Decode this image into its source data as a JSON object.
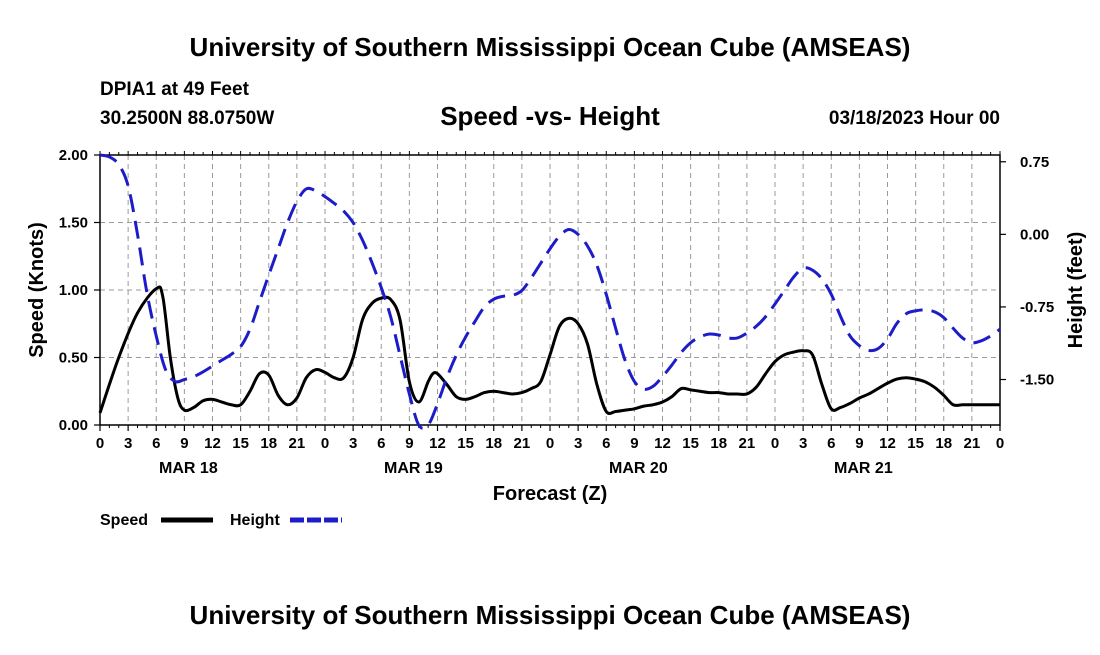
{
  "header": {
    "title": "University of Southern Mississippi Ocean Cube (AMSEAS)",
    "station": "DPIA1 at 49 Feet",
    "coords": "30.2500N  88.0750W",
    "plot_title": "Speed -vs- Height",
    "datetime": "03/18/2023 Hour 00",
    "footer_title": "University of Southern Mississippi Ocean Cube (AMSEAS)"
  },
  "legend": {
    "speed": "Speed",
    "height": "Height"
  },
  "colors": {
    "speed": "#000000",
    "height": "#1c1cc8",
    "grid": "#9a9a9a"
  },
  "chart_data": {
    "type": "line",
    "title": "Speed -vs- Height",
    "xlabel": "Forecast (Z)",
    "ylabel": "Speed (Knots)",
    "y2label": "Height (feet)",
    "xlim": [
      0,
      96
    ],
    "ylim": [
      0,
      2.0
    ],
    "y2lim": [
      -1.97,
      0.82
    ],
    "x_ticks": [
      0,
      3,
      6,
      9,
      12,
      15,
      18,
      21,
      24,
      27,
      30,
      33,
      36,
      39,
      42,
      45,
      48,
      51,
      54,
      57,
      60,
      63,
      66,
      69,
      72,
      75,
      78,
      81,
      84,
      87,
      90,
      93,
      96
    ],
    "x_tick_labels": [
      "0",
      "3",
      "6",
      "9",
      "12",
      "15",
      "18",
      "21",
      "0",
      "3",
      "6",
      "9",
      "12",
      "15",
      "18",
      "21",
      "0",
      "3",
      "6",
      "9",
      "12",
      "15",
      "18",
      "21",
      "0",
      "3",
      "6",
      "9",
      "12",
      "15",
      "18",
      "21",
      "0"
    ],
    "y_ticks": [
      0.0,
      0.5,
      1.0,
      1.5,
      2.0
    ],
    "y_tick_labels": [
      "0.00",
      "0.50",
      "1.00",
      "1.50",
      "2.00"
    ],
    "y2_ticks": [
      0.75,
      0.0,
      -0.75,
      -1.5
    ],
    "y2_tick_labels": [
      "0.75",
      "0.00",
      "-0.75",
      "-1.50"
    ],
    "date_labels": [
      {
        "x": 9,
        "label": "MAR 18"
      },
      {
        "x": 33,
        "label": "MAR 19"
      },
      {
        "x": 57,
        "label": "MAR 20"
      },
      {
        "x": 81,
        "label": "MAR 21"
      }
    ],
    "series": [
      {
        "name": "Speed",
        "axis": "left",
        "style": "solid",
        "x": [
          0,
          2,
          4,
          6,
          6.7,
          7.5,
          8.3,
          9,
          10,
          11,
          12,
          13,
          14,
          15,
          16,
          17,
          18,
          19,
          20,
          21,
          22,
          23,
          24,
          25,
          26,
          27,
          28,
          29,
          30,
          31,
          32,
          33,
          34,
          35,
          35.5,
          36,
          37,
          38,
          39,
          40,
          41,
          42,
          43,
          44,
          45,
          46,
          47,
          48,
          49,
          50,
          51,
          52,
          53,
          54,
          55,
          56,
          57,
          58,
          59,
          60,
          61,
          62,
          63,
          64,
          65,
          66,
          67,
          68,
          69,
          70,
          71,
          72,
          73,
          74,
          75,
          76,
          77,
          78,
          79,
          80,
          81,
          82,
          83,
          84,
          85,
          86,
          87,
          88,
          89,
          90,
          91,
          92,
          93,
          94,
          95,
          96
        ],
        "values": [
          0.09,
          0.5,
          0.83,
          1.01,
          0.95,
          0.5,
          0.2,
          0.11,
          0.13,
          0.18,
          0.19,
          0.17,
          0.15,
          0.15,
          0.25,
          0.38,
          0.37,
          0.22,
          0.15,
          0.2,
          0.35,
          0.41,
          0.39,
          0.35,
          0.35,
          0.5,
          0.78,
          0.9,
          0.94,
          0.93,
          0.78,
          0.32,
          0.17,
          0.32,
          0.38,
          0.38,
          0.3,
          0.21,
          0.19,
          0.21,
          0.24,
          0.25,
          0.24,
          0.23,
          0.24,
          0.27,
          0.32,
          0.52,
          0.73,
          0.79,
          0.75,
          0.6,
          0.3,
          0.1,
          0.1,
          0.11,
          0.12,
          0.14,
          0.15,
          0.17,
          0.21,
          0.27,
          0.26,
          0.25,
          0.24,
          0.24,
          0.23,
          0.23,
          0.23,
          0.28,
          0.38,
          0.47,
          0.52,
          0.54,
          0.55,
          0.52,
          0.3,
          0.12,
          0.13,
          0.16,
          0.2,
          0.23,
          0.27,
          0.31,
          0.34,
          0.35,
          0.34,
          0.32,
          0.28,
          0.22,
          0.15,
          0.15,
          0.15,
          0.15,
          0.15,
          0.15
        ]
      },
      {
        "name": "Height",
        "axis": "right",
        "style": "dashed",
        "x": [
          0,
          1,
          2,
          3,
          4,
          5,
          6,
          7,
          8,
          9,
          10,
          11,
          12,
          13,
          14,
          15,
          16,
          17,
          18,
          19,
          20,
          21,
          22,
          23,
          24,
          25,
          26,
          27,
          28,
          29,
          30,
          31,
          32,
          33,
          34,
          35,
          36,
          37,
          38,
          39,
          40,
          41,
          42,
          43,
          44,
          45,
          46,
          47,
          48,
          49,
          50,
          51,
          52,
          53,
          54,
          55,
          56,
          57,
          58,
          59,
          60,
          61,
          62,
          63,
          64,
          65,
          66,
          67,
          68,
          69,
          70,
          71,
          72,
          73,
          74,
          75,
          76,
          77,
          78,
          79,
          80,
          81,
          82,
          83,
          84,
          85,
          86,
          87,
          88,
          89,
          90,
          91,
          92,
          93,
          94,
          95,
          96
        ],
        "values": [
          0.82,
          0.8,
          0.72,
          0.5,
          0.0,
          -0.6,
          -1.05,
          -1.4,
          -1.52,
          -1.5,
          -1.47,
          -1.42,
          -1.36,
          -1.3,
          -1.24,
          -1.16,
          -0.98,
          -0.7,
          -0.42,
          -0.15,
          0.12,
          0.34,
          0.47,
          0.45,
          0.39,
          0.32,
          0.24,
          0.12,
          -0.06,
          -0.29,
          -0.55,
          -0.85,
          -1.25,
          -1.65,
          -1.97,
          -1.97,
          -1.75,
          -1.48,
          -1.25,
          -1.06,
          -0.9,
          -0.75,
          -0.67,
          -0.64,
          -0.63,
          -0.58,
          -0.45,
          -0.3,
          -0.15,
          -0.02,
          0.05,
          0.0,
          -0.12,
          -0.32,
          -0.62,
          -0.97,
          -1.3,
          -1.52,
          -1.6,
          -1.57,
          -1.47,
          -1.35,
          -1.22,
          -1.12,
          -1.06,
          -1.03,
          -1.04,
          -1.07,
          -1.07,
          -1.02,
          -0.95,
          -0.85,
          -0.72,
          -0.58,
          -0.44,
          -0.35,
          -0.37,
          -0.46,
          -0.62,
          -0.85,
          -1.05,
          -1.15,
          -1.2,
          -1.18,
          -1.08,
          -0.92,
          -0.82,
          -0.79,
          -0.78,
          -0.8,
          -0.86,
          -0.97,
          -1.07,
          -1.12,
          -1.1,
          -1.05,
          -0.98
        ]
      }
    ]
  }
}
